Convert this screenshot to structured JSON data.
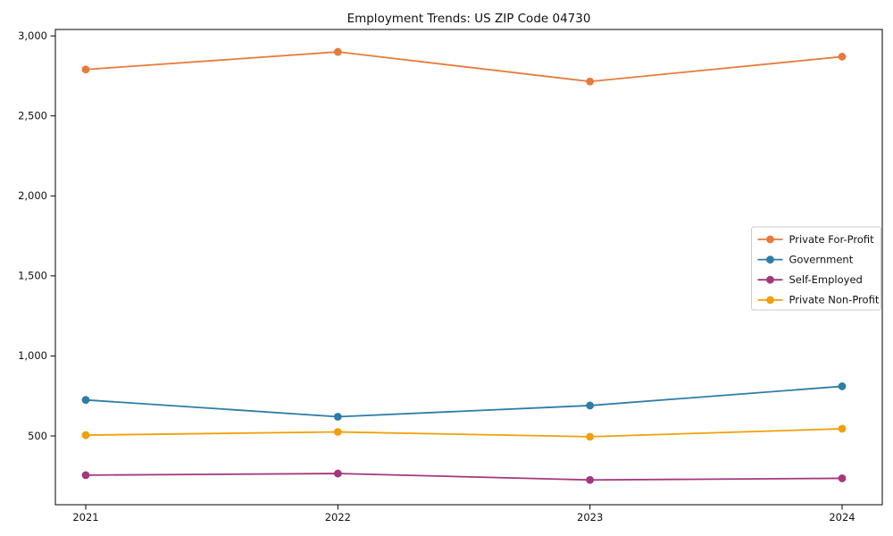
{
  "page": {
    "background": "#ffffff",
    "axis_color": "#000000",
    "legend_border_color": "#cccccc"
  },
  "chart_data": {
    "type": "line",
    "title": "Employment Trends: US ZIP Code 04730",
    "x": [
      2021,
      2022,
      2023,
      2024
    ],
    "x_tick_labels": [
      "2021",
      "2022",
      "2023",
      "2024"
    ],
    "y_ticks": [
      500,
      1000,
      1500,
      2000,
      2500,
      3000
    ],
    "y_tick_labels": [
      "500",
      "1,000",
      "1,500",
      "2,000",
      "2,500",
      "3,000"
    ],
    "ylim": [
      70,
      3040
    ],
    "xlabel": "",
    "ylabel": "",
    "grid": false,
    "legend_position": "center right",
    "marker": "circle",
    "series": [
      {
        "name": "Private For-Profit",
        "color": "#e67c3c",
        "values": [
          2790,
          2900,
          2715,
          2870
        ]
      },
      {
        "name": "Government",
        "color": "#2d7da5",
        "values": [
          725,
          620,
          690,
          810
        ]
      },
      {
        "name": "Self-Employed",
        "color": "#a5377d",
        "values": [
          255,
          265,
          225,
          235
        ]
      },
      {
        "name": "Private Non-Profit",
        "color": "#f0a00a",
        "values": [
          505,
          525,
          495,
          545
        ]
      }
    ]
  }
}
